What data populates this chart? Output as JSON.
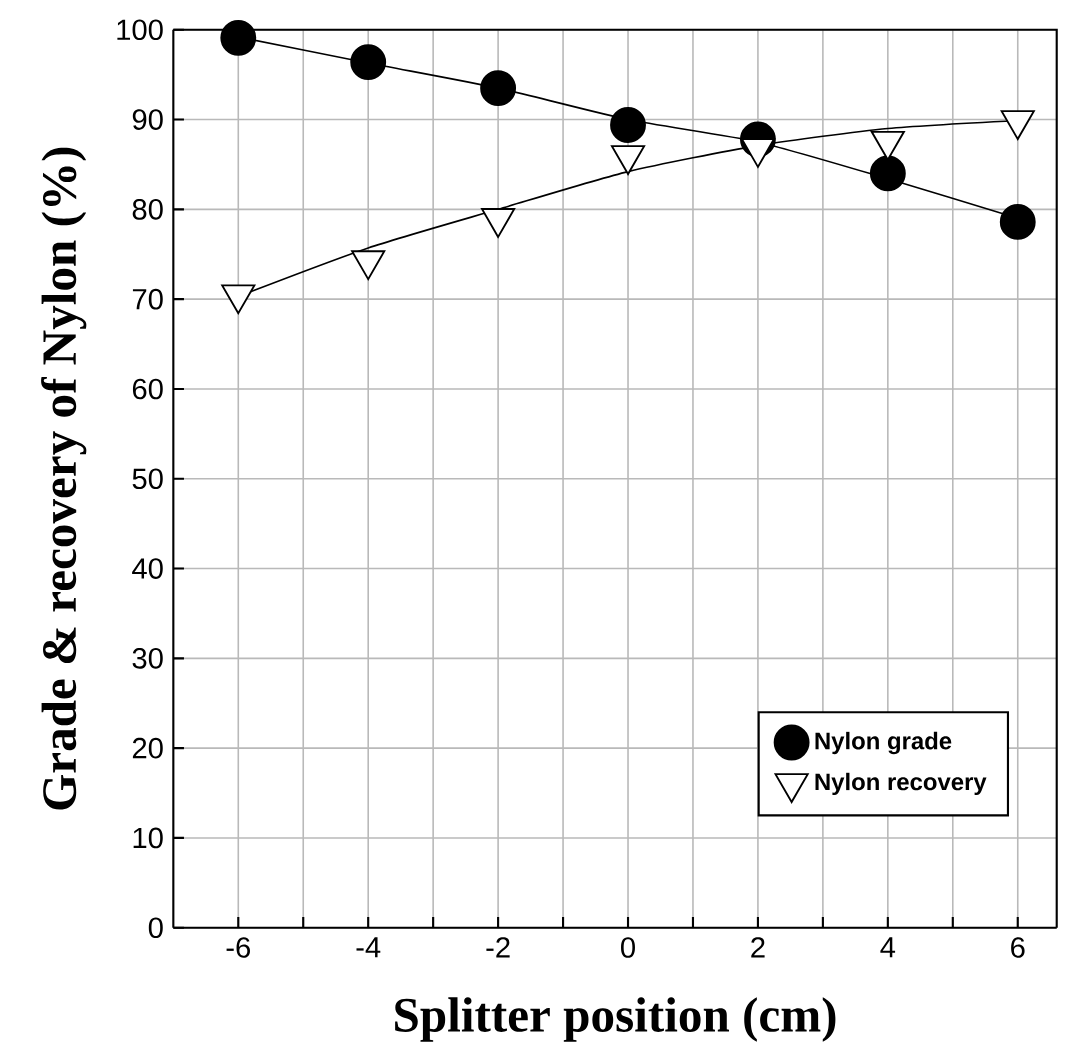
{
  "chart_data": {
    "type": "scatter",
    "xlabel": "Splitter position (cm)",
    "ylabel": "Grade & recovery of Nylon (%)",
    "xlim": [
      -7,
      6.6
    ],
    "ylim": [
      0,
      100
    ],
    "xticks": [
      -6,
      {
        "value": -5,
        "label": null
      },
      -4,
      {
        "value": -3,
        "label": null
      },
      -2,
      {
        "value": -1,
        "label": null
      },
      0,
      {
        "value": 1,
        "label": null
      },
      2,
      {
        "value": 3,
        "label": null
      },
      4,
      {
        "value": 5,
        "label": null
      },
      6
    ],
    "yticks": [
      0,
      10,
      20,
      30,
      40,
      50,
      60,
      70,
      80,
      90,
      100
    ],
    "grid": true,
    "legend": "bottom right",
    "series": [
      {
        "name": "Nylon grade",
        "marker": "circle",
        "color": "#000000",
        "x": [
          -6,
          -4,
          -2,
          0,
          2,
          4,
          6
        ],
        "values": [
          99.1,
          96.4,
          93.5,
          89.4,
          87.8,
          84.0,
          78.6
        ]
      },
      {
        "name": "Nylon recovery",
        "marker": "triangle",
        "color": "#ffffff",
        "x": [
          -6,
          -4,
          -2,
          0,
          2,
          4,
          6
        ],
        "values": [
          70.5,
          74.3,
          79.0,
          86.0,
          86.8,
          87.6,
          89.9
        ]
      },
      {
        "type": "line",
        "color": "#000000",
        "x": [
          -6,
          -4,
          -2,
          0,
          2,
          4,
          6
        ],
        "values": [
          99.2,
          96.3,
          93.5,
          90.0,
          87.5,
          83.4,
          79.0
        ]
      },
      {
        "type": "line",
        "color": "#000000",
        "x": [
          -6,
          -4,
          -2,
          0,
          2,
          4,
          6
        ],
        "values": [
          70.3,
          75.7,
          80.0,
          84.2,
          87.1,
          89.0,
          89.9
        ]
      }
    ]
  }
}
